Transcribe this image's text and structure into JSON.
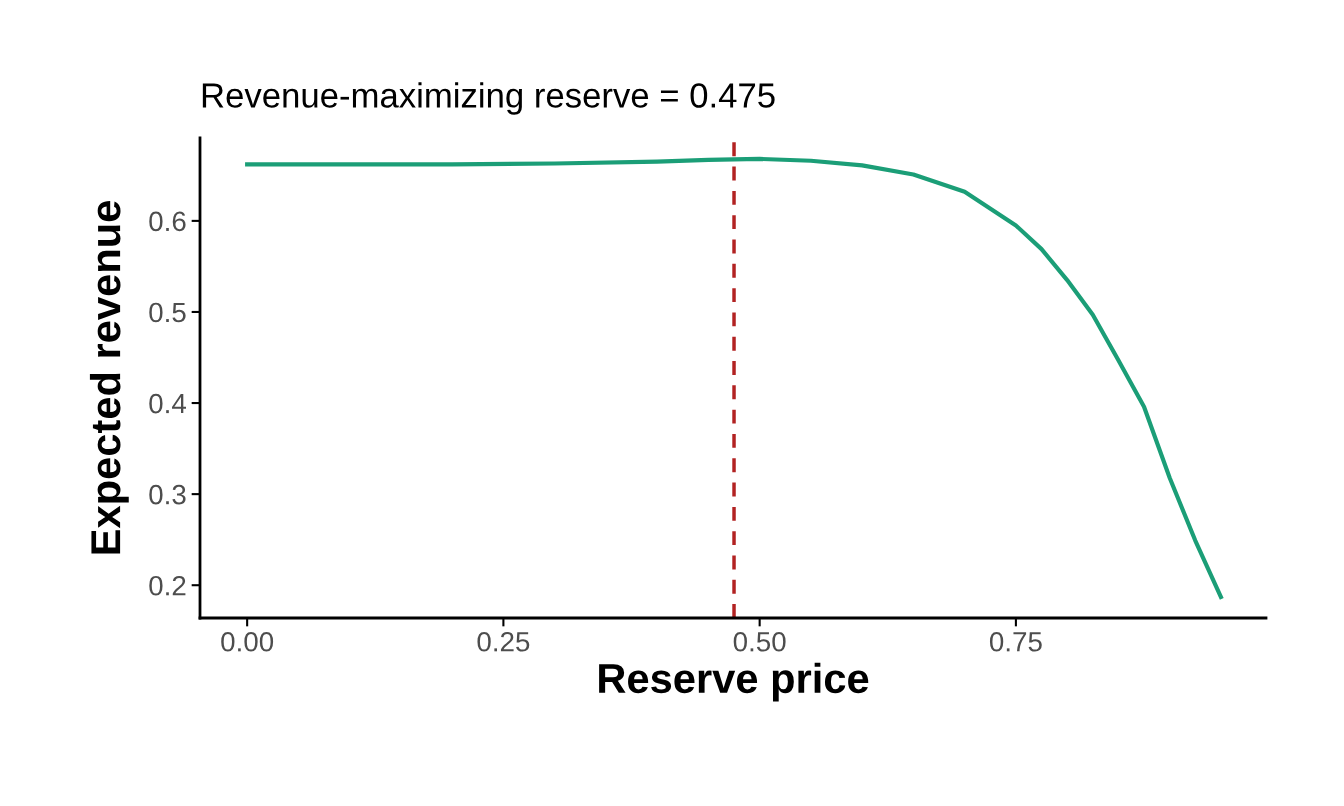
{
  "chart_data": {
    "type": "line",
    "title": "Revenue-maximizing reserve = 0.475",
    "xlabel": "Reserve price",
    "ylabel": "Expected revenue",
    "x": [
      0,
      0.1,
      0.2,
      0.3,
      0.4,
      0.45,
      0.5,
      0.55,
      0.6,
      0.65,
      0.7,
      0.75,
      0.775,
      0.8,
      0.825,
      0.85,
      0.875,
      0.9,
      0.925,
      0.95
    ],
    "series": [
      {
        "color": "#1b9e77",
        "values": [
          0.662,
          0.662,
          0.662,
          0.663,
          0.665,
          0.667,
          0.668,
          0.666,
          0.661,
          0.651,
          0.632,
          0.595,
          0.569,
          0.535,
          0.497,
          0.447,
          0.396,
          0.318,
          0.249,
          0.187
        ]
      }
    ],
    "xlim": [
      -0.046,
      0.994
    ],
    "ylim": [
      0.164,
      0.691
    ],
    "xticks": [
      {
        "value": 0,
        "label": "0.00"
      },
      {
        "value": 0.25,
        "label": "0.25"
      },
      {
        "value": 0.5,
        "label": "0.50"
      },
      {
        "value": 0.75,
        "label": "0.75"
      }
    ],
    "yticks": [
      0.2,
      0.3,
      0.4,
      0.5,
      0.6
    ],
    "ref_lines": [
      {
        "axis": "x",
        "value": 0.475,
        "color": "#b22222",
        "line_style": "dashed"
      }
    ],
    "grid": false,
    "legend": false,
    "line_style": "solid"
  }
}
